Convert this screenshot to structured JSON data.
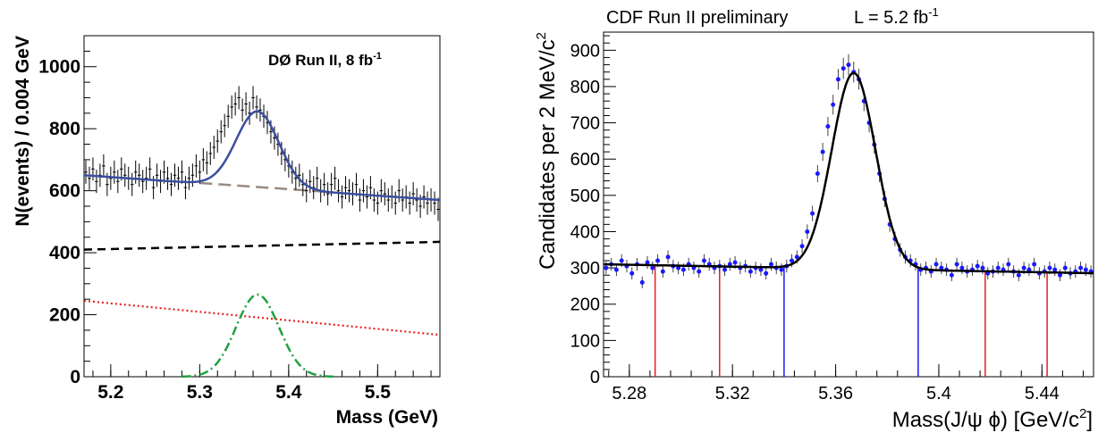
{
  "chart_data": [
    {
      "type": "line",
      "annotation": "DØ Run II, 8 fb",
      "annotation_sup": "-1",
      "xlabel": "Mass (GeV)",
      "ylabel": "N(events) / 0.004 GeV",
      "xlim": [
        5.17,
        5.57
      ],
      "ylim": [
        0,
        1100
      ],
      "x_ticks": [
        "5.2",
        "5.3",
        "5.4",
        "5.5"
      ],
      "y_ticks": [
        "0",
        "200",
        "400",
        "600",
        "800",
        "1000"
      ],
      "colors": {
        "data": "#000000",
        "total_fit": "#3b4ea0",
        "background": "#9a8a80",
        "dashed_black": "#000000",
        "dotted_red": "#e82020",
        "signal": "#20a040"
      },
      "series": [
        {
          "style": "points",
          "x": [
            5.172,
            5.176,
            5.18,
            5.184,
            5.188,
            5.192,
            5.196,
            5.2,
            5.204,
            5.208,
            5.212,
            5.216,
            5.22,
            5.224,
            5.228,
            5.232,
            5.236,
            5.24,
            5.244,
            5.248,
            5.252,
            5.256,
            5.26,
            5.264,
            5.268,
            5.272,
            5.276,
            5.28,
            5.284,
            5.288,
            5.292,
            5.296,
            5.3,
            5.304,
            5.308,
            5.312,
            5.316,
            5.32,
            5.324,
            5.328,
            5.332,
            5.336,
            5.34,
            5.344,
            5.348,
            5.352,
            5.356,
            5.36,
            5.364,
            5.368,
            5.372,
            5.376,
            5.38,
            5.384,
            5.388,
            5.392,
            5.396,
            5.4,
            5.404,
            5.408,
            5.412,
            5.416,
            5.42,
            5.424,
            5.428,
            5.432,
            5.436,
            5.44,
            5.444,
            5.448,
            5.452,
            5.456,
            5.46,
            5.464,
            5.468,
            5.472,
            5.476,
            5.48,
            5.484,
            5.488,
            5.492,
            5.496,
            5.5,
            5.504,
            5.508,
            5.512,
            5.516,
            5.52,
            5.524,
            5.528,
            5.532,
            5.536,
            5.54,
            5.544,
            5.548,
            5.552,
            5.556,
            5.56,
            5.564,
            5.568
          ],
          "y": [
            660,
            640,
            670,
            630,
            650,
            680,
            620,
            640,
            660,
            630,
            670,
            650,
            640,
            620,
            660,
            650,
            630,
            640,
            670,
            610,
            650,
            630,
            660,
            640,
            620,
            650,
            640,
            660,
            610,
            640,
            650,
            680,
            660,
            700,
            690,
            720,
            740,
            760,
            790,
            810,
            840,
            870,
            880,
            900,
            860,
            880,
            850,
            900,
            870,
            860,
            840,
            820,
            790,
            770,
            750,
            720,
            700,
            680,
            660,
            640,
            650,
            620,
            600,
            630,
            610,
            640,
            600,
            620,
            590,
            620,
            640,
            600,
            580,
            610,
            600,
            590,
            620,
            570,
            600,
            580,
            610,
            570,
            560,
            600,
            590,
            570,
            580,
            560,
            600,
            570,
            580,
            560,
            590,
            570,
            550,
            580,
            560,
            570,
            560,
            540
          ]
        },
        {
          "style": "line",
          "x": [
            5.17,
            5.57
          ],
          "y_fn": "total"
        },
        {
          "style": "dashed-background",
          "x": [
            5.3,
            5.45
          ],
          "y": [
            625,
            595
          ]
        },
        {
          "style": "dashed-black",
          "x": [
            5.17,
            5.57
          ],
          "y": [
            410,
            435
          ]
        },
        {
          "style": "dotted-red",
          "x": [
            5.17,
            5.57
          ],
          "y": [
            245,
            135
          ]
        },
        {
          "style": "signal",
          "peak": 265,
          "mean": 5.365,
          "sigma": 0.024
        }
      ]
    },
    {
      "type": "line",
      "title": "CDF Run II preliminary",
      "lumi": "L = 5.2 fb",
      "lumi_sup": "-1",
      "xlabel": "Mass(J/ψ ϕ) [GeV/c",
      "xlabel_sup": "2",
      "xlabel_end": "]",
      "ylabel": "Candidates per 2 MeV/c",
      "ylabel_sup": "2",
      "xlim": [
        5.27,
        5.46
      ],
      "ylim": [
        0,
        950
      ],
      "x_ticks": [
        "5.28",
        "5.32",
        "5.36",
        "5.4",
        "5.44"
      ],
      "y_ticks": [
        "0",
        "100",
        "200",
        "300",
        "400",
        "500",
        "600",
        "700",
        "800",
        "900"
      ],
      "colors": {
        "data": "#1a1aff",
        "fit": "#000000",
        "sideband": "#e02020",
        "signal_region": "#1a1aff"
      },
      "series": [
        {
          "style": "points",
          "x": [
            5.271,
            5.273,
            5.275,
            5.277,
            5.279,
            5.281,
            5.283,
            5.285,
            5.287,
            5.289,
            5.291,
            5.293,
            5.295,
            5.297,
            5.299,
            5.301,
            5.303,
            5.305,
            5.307,
            5.309,
            5.311,
            5.313,
            5.315,
            5.317,
            5.319,
            5.321,
            5.323,
            5.325,
            5.327,
            5.329,
            5.331,
            5.333,
            5.335,
            5.337,
            5.339,
            5.341,
            5.343,
            5.345,
            5.347,
            5.349,
            5.351,
            5.353,
            5.355,
            5.357,
            5.359,
            5.361,
            5.363,
            5.365,
            5.367,
            5.369,
            5.371,
            5.373,
            5.375,
            5.377,
            5.379,
            5.381,
            5.383,
            5.385,
            5.387,
            5.389,
            5.391,
            5.393,
            5.395,
            5.397,
            5.399,
            5.401,
            5.403,
            5.405,
            5.407,
            5.409,
            5.411,
            5.413,
            5.415,
            5.417,
            5.419,
            5.421,
            5.423,
            5.425,
            5.427,
            5.429,
            5.431,
            5.433,
            5.435,
            5.437,
            5.439,
            5.441,
            5.443,
            5.445,
            5.447,
            5.449,
            5.451,
            5.453,
            5.455,
            5.457,
            5.459
          ],
          "y": [
            300,
            310,
            295,
            320,
            305,
            285,
            310,
            260,
            315,
            300,
            320,
            290,
            330,
            305,
            300,
            295,
            310,
            300,
            290,
            320,
            310,
            300,
            305,
            295,
            310,
            315,
            300,
            305,
            290,
            300,
            295,
            285,
            310,
            300,
            295,
            305,
            320,
            330,
            360,
            400,
            450,
            560,
            620,
            690,
            750,
            820,
            850,
            860,
            840,
            820,
            760,
            700,
            640,
            560,
            490,
            420,
            380,
            350,
            330,
            320,
            310,
            295,
            300,
            290,
            310,
            300,
            295,
            280,
            310,
            300,
            290,
            295,
            305,
            300,
            285,
            290,
            300,
            295,
            310,
            290,
            280,
            300,
            295,
            310,
            285,
            290,
            300,
            295,
            280,
            300,
            285,
            290,
            300,
            295,
            290
          ]
        },
        {
          "style": "fit",
          "baseline": 310,
          "slope": -130,
          "peak": 540,
          "mean": 5.367,
          "sigma": 0.0085
        },
        {
          "style": "sideband-lines",
          "x": [
            5.29,
            5.315,
            5.418,
            5.442
          ]
        },
        {
          "style": "signal-lines",
          "x": [
            5.34,
            5.392
          ]
        }
      ]
    }
  ]
}
